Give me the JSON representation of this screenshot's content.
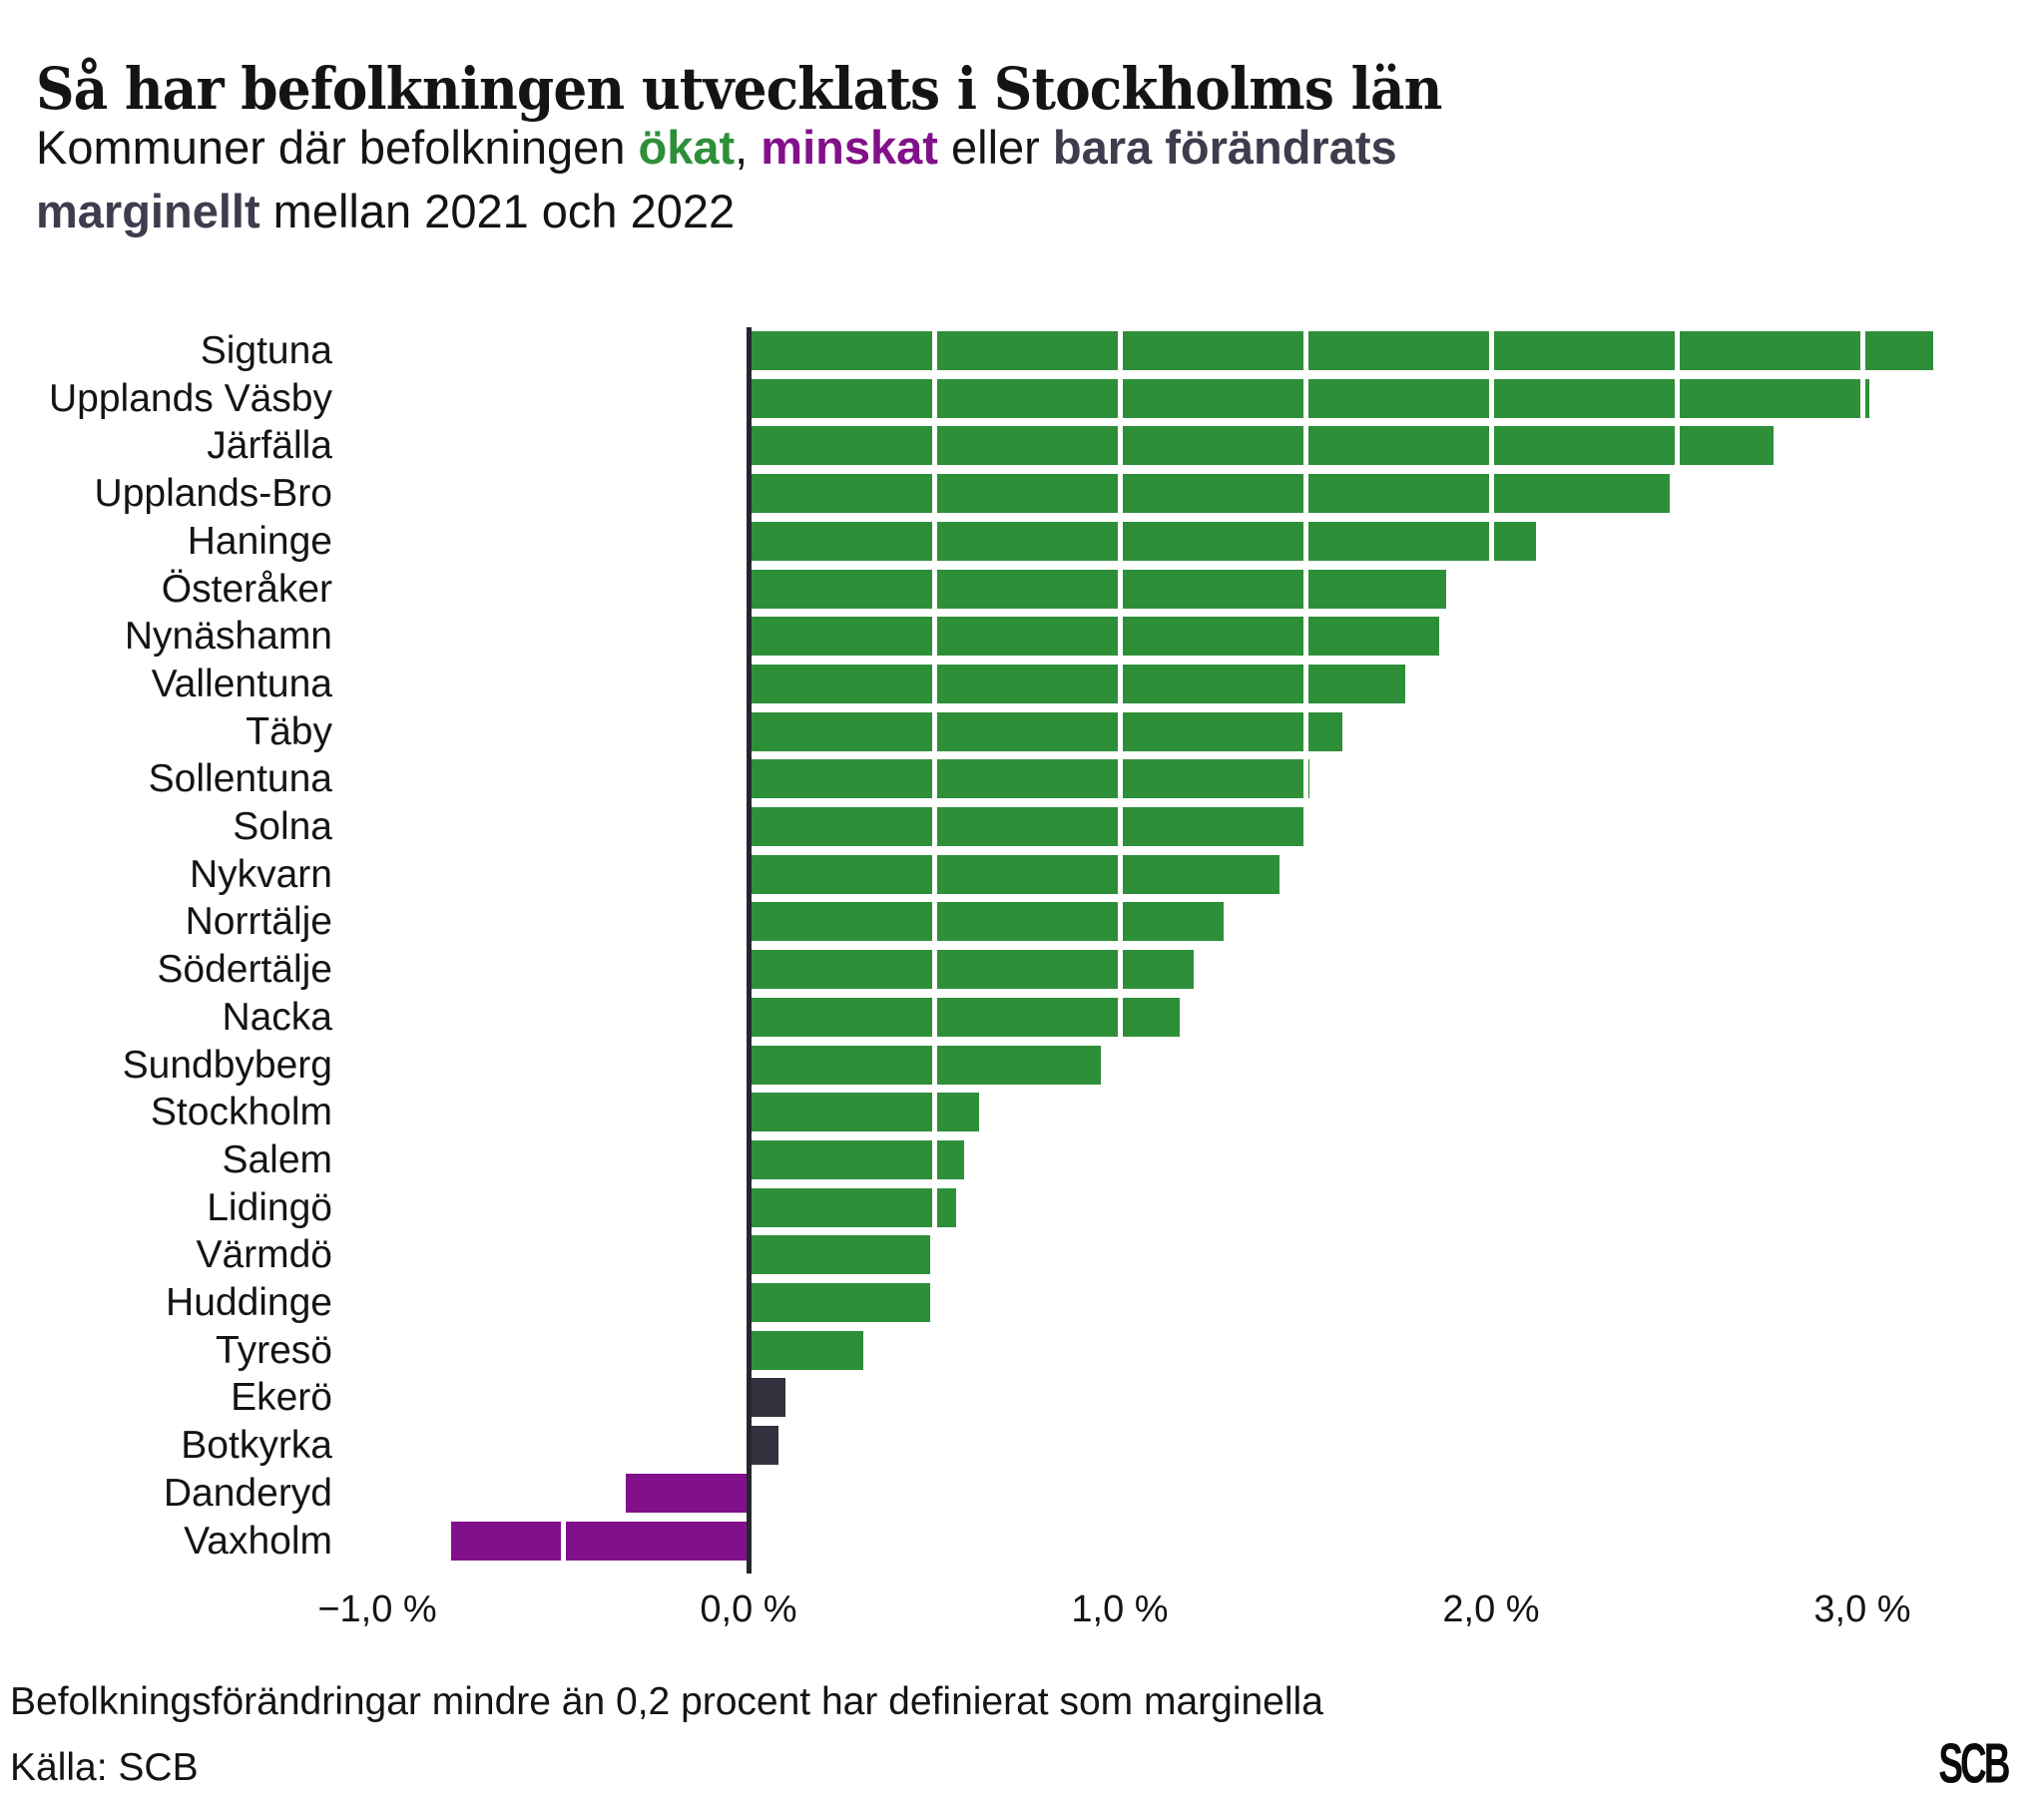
{
  "subtitle": {
    "segments": [
      {
        "text": "Kommuner där befolkningen ",
        "style": "normal"
      },
      {
        "text": "ökat",
        "style": "green"
      },
      {
        "text": ", ",
        "style": "normal"
      },
      {
        "text": "minskat",
        "style": "purple"
      },
      {
        "text": " eller ",
        "style": "normal"
      },
      {
        "text": "bara förändrats marginellt",
        "style": "dark"
      },
      {
        "text": " mellan 2021 och 2022",
        "style": "normal"
      }
    ]
  },
  "chart_data": {
    "type": "bar",
    "orientation": "horizontal",
    "title": "Så har befolkningen utvecklats i Stockholms län",
    "xlabel": "",
    "ylabel": "",
    "unit": "%",
    "xlim": [
      -1.1,
      3.3
    ],
    "grid": true,
    "gridline_step": 0.5,
    "gridlines": [
      -0.5,
      0.5,
      1.0,
      1.5,
      2.0,
      2.5,
      3.0
    ],
    "gridline_color": "#ffffff",
    "axis_color": "#26262e",
    "categories": [
      "Sigtuna",
      "Upplands Väsby",
      "Järfälla",
      "Upplands-Bro",
      "Haninge",
      "Österåker",
      "Nynäshamn",
      "Vallentuna",
      "Täby",
      "Sollentuna",
      "Solna",
      "Nykvarn",
      "Norrtälje",
      "Södertälje",
      "Nacka",
      "Sundbyberg",
      "Stockholm",
      "Salem",
      "Lidingö",
      "Värmdö",
      "Huddinge",
      "Tyresö",
      "Ekerö",
      "Botkyrka",
      "Danderyd",
      "Vaxholm"
    ],
    "values": [
      3.19,
      3.02,
      2.76,
      2.48,
      2.12,
      1.88,
      1.86,
      1.77,
      1.6,
      1.51,
      1.5,
      1.43,
      1.28,
      1.2,
      1.16,
      0.95,
      0.62,
      0.58,
      0.56,
      0.49,
      0.49,
      0.31,
      0.1,
      0.08,
      -0.33,
      -0.8
    ],
    "groups": [
      "increase",
      "increase",
      "increase",
      "increase",
      "increase",
      "increase",
      "increase",
      "increase",
      "increase",
      "increase",
      "increase",
      "increase",
      "increase",
      "increase",
      "increase",
      "increase",
      "increase",
      "increase",
      "increase",
      "increase",
      "increase",
      "increase",
      "marginal",
      "marginal",
      "decrease",
      "decrease"
    ],
    "colors": {
      "increase": "#2e8f39",
      "marginal": "#32323e",
      "decrease": "#82108a"
    },
    "color_rule": "förändring < 0,2 procent (absolutbelopp) = marginell (mörk), ökning = grön, minskning = lila",
    "x_ticks": [
      {
        "value": -1,
        "label": "−1,0 %"
      },
      {
        "value": 0,
        "label": "0,0 %"
      },
      {
        "value": 1,
        "label": "1,0 %"
      },
      {
        "value": 2,
        "label": "2,0 %"
      },
      {
        "value": 3,
        "label": "3,0 %"
      }
    ],
    "legend": "inline-in-subtitle"
  },
  "footnote": "Befolkningsförändringar mindre än 0,2 procent har definierat som marginella",
  "source": "Källa: SCB",
  "logo": "SCB"
}
